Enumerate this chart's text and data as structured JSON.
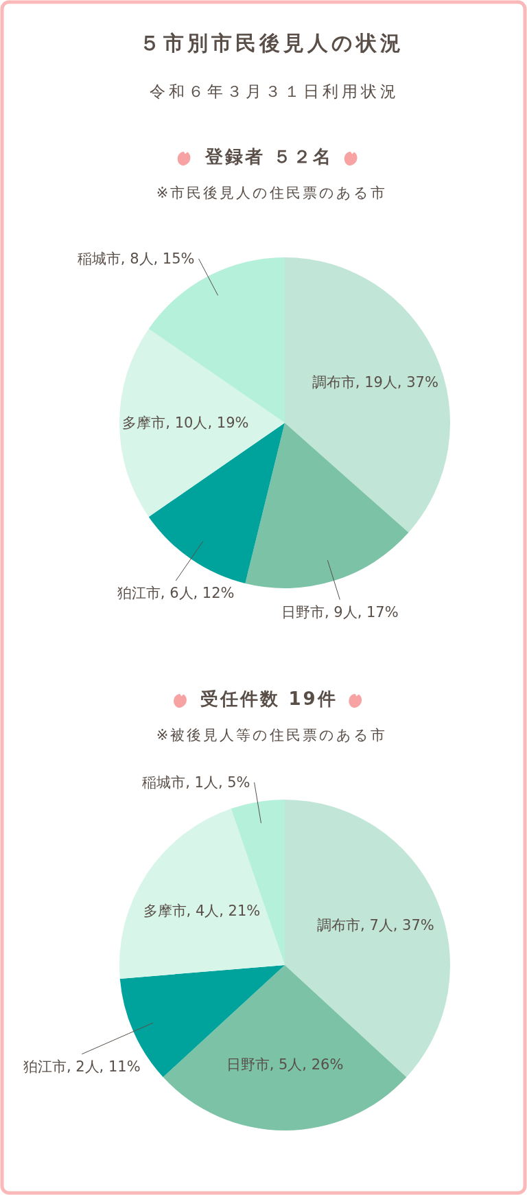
{
  "chart_data": [
    {
      "type": "other",
      "title": "５市別市民後見人の状況",
      "subtitle": "令和６年３月３１日利用状況"
    },
    {
      "type": "pie",
      "title": "登録者 ５２名",
      "subtitle": "※市民後見人の住民票のある市",
      "categories": [
        "調布市",
        "日野市",
        "狛江市",
        "多摩市",
        "稲城市"
      ],
      "values": [
        19,
        9,
        6,
        10,
        8
      ],
      "value_labels": [
        "19人, 37%",
        "9人, 17%",
        "6人, 12%",
        "10人, 19%",
        "8人, 15%"
      ],
      "colors": [
        "#c1e6d8",
        "#7bc2a7",
        "#00a39c",
        "#d8f5ea",
        "#b5f0da"
      ]
    },
    {
      "type": "pie",
      "title": "受任件数 19件",
      "subtitle": "※被後見人等の住民票のある市",
      "categories": [
        "調布市",
        "日野市",
        "狛江市",
        "多摩市",
        "稲城市"
      ],
      "values": [
        7,
        5,
        2,
        4,
        1
      ],
      "value_labels": [
        "7人, 37%",
        "5人, 26%",
        "2人, 11%",
        "4人, 21%",
        "1人, 5%"
      ],
      "colors": [
        "#c1e6d8",
        "#7bc2a7",
        "#00a39c",
        "#d8f5ea",
        "#b5f0da"
      ]
    }
  ]
}
